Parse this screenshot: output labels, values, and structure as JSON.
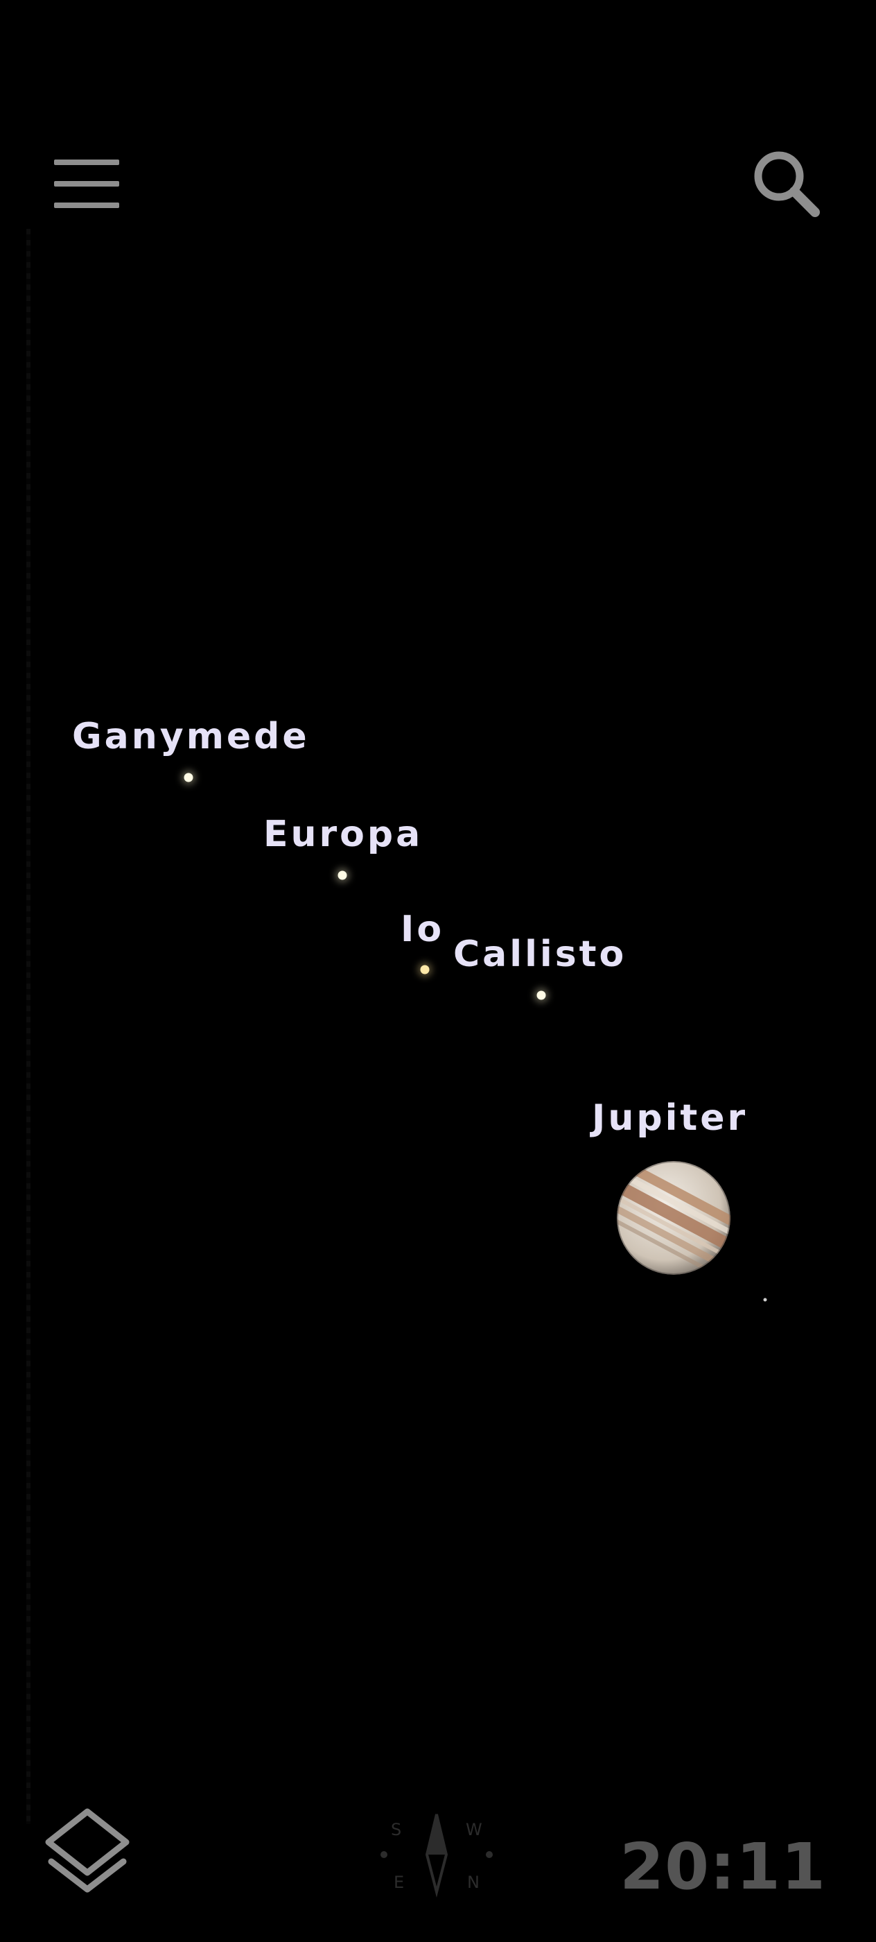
{
  "toolbar": {
    "menu_icon": "hamburger-menu-icon",
    "search_icon": "search-icon"
  },
  "sky_objects": {
    "moons": [
      {
        "name": "Ganymede"
      },
      {
        "name": "Europa"
      },
      {
        "name": "Io"
      },
      {
        "name": "Callisto"
      }
    ],
    "planet": {
      "name": "Jupiter"
    }
  },
  "bottom_bar": {
    "layers_icon": "layers-icon",
    "compass": {
      "s": "S",
      "w": "W",
      "e": "E",
      "n": "N"
    },
    "time": "20:11"
  },
  "colors": {
    "background": "#000000",
    "label": "#e6e2f7",
    "icon": "#8e8e8e",
    "clock": "#545454"
  }
}
